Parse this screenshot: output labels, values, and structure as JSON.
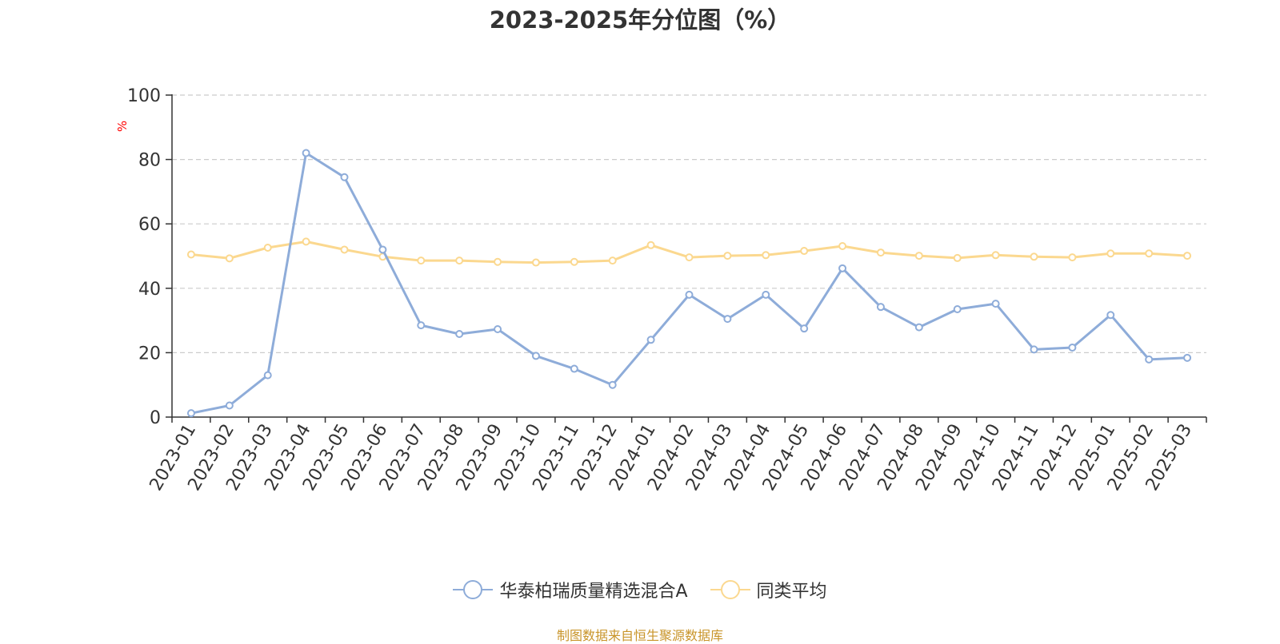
{
  "chart_data": {
    "type": "line",
    "title": "2023-2025年分位图（%）",
    "ylabel": "%",
    "ylim": [
      0,
      100
    ],
    "yticks": [
      0,
      20,
      40,
      60,
      80,
      100
    ],
    "grid": true,
    "legend_position": "bottom",
    "categories": [
      "2023-01",
      "2023-02",
      "2023-03",
      "2023-04",
      "2023-05",
      "2023-06",
      "2023-07",
      "2023-08",
      "2023-09",
      "2023-10",
      "2023-11",
      "2023-12",
      "2024-01",
      "2024-02",
      "2024-03",
      "2024-04",
      "2024-05",
      "2024-06",
      "2024-07",
      "2024-08",
      "2024-09",
      "2024-10",
      "2024-11",
      "2024-12",
      "2025-01",
      "2025-02",
      "2025-03"
    ],
    "series": [
      {
        "name": "华泰柏瑞质量精选混合A",
        "color": "#8eacd9",
        "values": [
          1.2,
          3.6,
          13.0,
          82.0,
          74.5,
          52.0,
          28.5,
          25.8,
          27.3,
          19.0,
          15.0,
          10.0,
          24.0,
          38.0,
          30.5,
          38.0,
          27.5,
          46.2,
          34.2,
          27.9,
          33.5,
          35.2,
          21.0,
          21.6,
          31.7,
          17.9,
          18.4
        ]
      },
      {
        "name": "同类平均",
        "color": "#fbd88f",
        "values": [
          50.5,
          49.3,
          52.6,
          54.5,
          52.0,
          49.8,
          48.6,
          48.6,
          48.2,
          48.0,
          48.2,
          48.6,
          53.4,
          49.6,
          50.1,
          50.3,
          51.6,
          53.1,
          51.1,
          50.1,
          49.4,
          50.3,
          49.8,
          49.6,
          50.8,
          50.8,
          50.1
        ]
      }
    ]
  },
  "source": {
    "text": "制图数据来自恒生聚源数据库",
    "color": "#c9952a"
  }
}
